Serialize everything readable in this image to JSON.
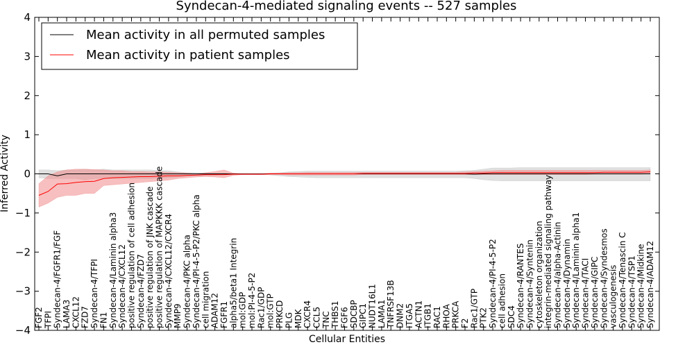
{
  "chart_data": {
    "type": "line",
    "title": "Syndecan-4-mediated signaling events -- 527 samples",
    "xlabel": "Cellular Entities",
    "ylabel": "Inferred Activity",
    "ylim": [
      -4,
      4
    ],
    "yticks": [
      -4,
      -3,
      -2,
      -1,
      0,
      1,
      2,
      3,
      4
    ],
    "grid": false,
    "legend_position": "top-left",
    "categories": [
      "FGF2",
      "TFPI",
      "Syndecan-4/FGFR1/FGF",
      "LAMA3",
      "CXCL12",
      "FZD7",
      "Syndecan-4/TFPI",
      "FN1",
      "Syndecan-4/Laminin alpha3",
      "Syndecan-4/CXCL12",
      "positive regulation of cell adhesion",
      "Syndecan-4/FZD7",
      "positive regulation of JNK cascade",
      "positive regulation of MAPKKK cascade",
      "Syndecan-4/CXCL12/CXCR4",
      "MMP9",
      "Syndecan-4/PKC alpha",
      "Syndecan-4/PI-4-5-P2/PKC alpha",
      "cell migration",
      "ADAM12",
      "FGFR1",
      "alpha5/beta1 Integrin",
      "mol:GDP",
      "mol:PI-4-5-P2",
      "Rac1/GDP",
      "mol:GTP",
      "PRKCD",
      "PLG",
      "MDK",
      "CXCR4",
      "CCL5",
      "TNC",
      "THBS1",
      "FGF6",
      "SDCBP",
      "GIPC1",
      "NUDT16L1",
      "LAMA1",
      "TNFRSF13B",
      "DNM2",
      "ITGA5",
      "ACTN1",
      "ITGB1",
      "RAC1",
      "RHOA",
      "PRKCA",
      "F2",
      "Rac1/GTP",
      "PTK2",
      "Syndecan-4/PI-4-5-P2",
      "cell adhesion",
      "SDC4",
      "Syndecan-4/RANTES",
      "Syndecan-4/Syntenin",
      "cytoskeleton organization",
      "integrin-mediated signaling pathway",
      "Syndecan-4/alpha-Actinin",
      "Syndecan-4/Dynamin",
      "Syndecan-4/Laminin alpha1",
      "Syndecan-4/TACI",
      "Syndecan-4/GIPC",
      "Syndecan-4/Syndesmos",
      "vasculogenesis",
      "Syndecan-4/Tenascin C",
      "Syndecan-4/TSP1",
      "Syndecan-4/Midkine",
      "Syndecan-4/ADAM12"
    ],
    "series": [
      {
        "name": "Mean activity in all permuted samples",
        "color": "#000000",
        "band_color": "#bbbbbb",
        "values": [
          0.0,
          0.0,
          -0.05,
          0.0,
          0.0,
          0.0,
          0.0,
          0.0,
          0.0,
          0.0,
          0.0,
          0.0,
          0.0,
          0.0,
          0.0,
          0.0,
          0.0,
          0.0,
          0.0,
          0.0,
          0.0,
          0.0,
          0.0,
          0.0,
          0.0,
          0.0,
          0.0,
          0.0,
          0.0,
          0.0,
          0.0,
          0.0,
          0.0,
          0.0,
          0.0,
          0.0,
          0.0,
          0.0,
          0.0,
          0.0,
          0.0,
          0.0,
          0.0,
          0.0,
          0.0,
          0.0,
          0.0,
          -0.01,
          0.0,
          0.0,
          0.0,
          0.0,
          0.0,
          0.0,
          0.0,
          0.0,
          0.0,
          0.0,
          0.0,
          0.0,
          0.0,
          0.0,
          0.0,
          0.0,
          0.0,
          0.0,
          0.0
        ],
        "upper": [
          0.1,
          0.1,
          0.08,
          0.1,
          0.1,
          0.12,
          0.1,
          0.12,
          0.1,
          0.1,
          0.1,
          0.1,
          0.1,
          0.08,
          0.08,
          0.05,
          0.03,
          0.03,
          0.02,
          0.02,
          0.02,
          0.0,
          0.0,
          0.0,
          0.0,
          0.02,
          0.03,
          0.05,
          0.06,
          0.07,
          0.07,
          0.07,
          0.07,
          0.07,
          0.07,
          0.07,
          0.07,
          0.07,
          0.07,
          0.07,
          0.07,
          0.07,
          0.07,
          0.07,
          0.07,
          0.07,
          0.08,
          0.09,
          0.12,
          0.15,
          0.15,
          0.15,
          0.16,
          0.16,
          0.16,
          0.16,
          0.16,
          0.16,
          0.16,
          0.16,
          0.16,
          0.16,
          0.16,
          0.16,
          0.16,
          0.16,
          0.16
        ],
        "lower": [
          -0.1,
          -0.12,
          -0.12,
          -0.12,
          -0.12,
          -0.15,
          -0.12,
          -0.12,
          -0.12,
          -0.12,
          -0.12,
          -0.12,
          -0.12,
          -0.1,
          -0.1,
          -0.08,
          -0.06,
          -0.05,
          -0.04,
          -0.03,
          -0.02,
          0.0,
          0.0,
          0.0,
          0.0,
          -0.03,
          -0.05,
          -0.07,
          -0.08,
          -0.09,
          -0.1,
          -0.1,
          -0.1,
          -0.1,
          -0.1,
          -0.1,
          -0.1,
          -0.1,
          -0.1,
          -0.1,
          -0.1,
          -0.1,
          -0.1,
          -0.1,
          -0.1,
          -0.1,
          -0.1,
          -0.12,
          -0.15,
          -0.17,
          -0.18,
          -0.18,
          -0.18,
          -0.18,
          -0.18,
          -0.18,
          -0.18,
          -0.18,
          -0.18,
          -0.18,
          -0.18,
          -0.18,
          -0.18,
          -0.18,
          -0.18,
          -0.18,
          -0.18
        ]
      },
      {
        "name": "Mean activity in patient samples",
        "color": "#ff0000",
        "band_color": "#f08080",
        "values": [
          -0.55,
          -0.45,
          -0.26,
          -0.25,
          -0.22,
          -0.2,
          -0.19,
          -0.12,
          -0.1,
          -0.09,
          -0.08,
          -0.07,
          -0.07,
          -0.06,
          -0.05,
          -0.05,
          -0.04,
          -0.03,
          -0.02,
          -0.02,
          -0.02,
          -0.01,
          -0.01,
          -0.01,
          -0.01,
          0.0,
          0.0,
          0.0,
          0.0,
          0.0,
          0.0,
          0.0,
          0.0,
          0.0,
          0.0,
          0.01,
          0.01,
          0.01,
          0.01,
          0.01,
          0.01,
          0.01,
          0.01,
          0.01,
          0.01,
          0.01,
          0.01,
          0.02,
          0.02,
          0.03,
          0.03,
          0.03,
          0.03,
          0.03,
          0.03,
          0.03,
          0.03,
          0.03,
          0.03,
          0.03,
          0.03,
          0.04,
          0.04,
          0.04,
          0.04,
          0.04,
          0.05
        ],
        "upper": [
          -0.25,
          -0.05,
          0.05,
          0.1,
          0.12,
          0.12,
          0.11,
          0.1,
          0.08,
          0.08,
          0.06,
          0.06,
          0.05,
          0.05,
          0.04,
          0.03,
          0.02,
          0.0,
          0.03,
          0.06,
          0.1,
          0.02,
          0.0,
          0.0,
          0.0,
          0.02,
          0.02,
          0.03,
          0.03,
          0.04,
          0.04,
          0.04,
          0.04,
          0.04,
          0.04,
          0.04,
          0.04,
          0.04,
          0.04,
          0.04,
          0.04,
          0.04,
          0.04,
          0.04,
          0.04,
          0.04,
          0.05,
          0.06,
          0.07,
          0.08,
          0.09,
          0.09,
          0.09,
          0.09,
          0.09,
          0.09,
          0.09,
          0.09,
          0.09,
          0.09,
          0.09,
          0.09,
          0.09,
          0.09,
          0.09,
          0.09,
          0.1
        ],
        "lower": [
          -0.85,
          -0.75,
          -0.6,
          -0.55,
          -0.55,
          -0.5,
          -0.5,
          -0.3,
          -0.28,
          -0.26,
          -0.24,
          -0.22,
          -0.2,
          -0.18,
          -0.16,
          -0.12,
          -0.1,
          -0.08,
          -0.07,
          -0.08,
          -0.1,
          -0.04,
          -0.02,
          -0.02,
          -0.02,
          -0.02,
          -0.02,
          -0.03,
          -0.03,
          -0.03,
          -0.03,
          -0.03,
          -0.03,
          -0.03,
          -0.03,
          -0.02,
          -0.02,
          -0.02,
          -0.02,
          -0.02,
          -0.02,
          -0.02,
          -0.02,
          -0.02,
          -0.02,
          -0.02,
          -0.02,
          -0.02,
          -0.02,
          -0.02,
          -0.02,
          -0.02,
          -0.02,
          -0.02,
          -0.02,
          -0.02,
          -0.02,
          -0.02,
          -0.02,
          -0.02,
          -0.01,
          -0.01,
          -0.01,
          -0.01,
          -0.01,
          -0.01,
          0.0
        ]
      }
    ]
  }
}
